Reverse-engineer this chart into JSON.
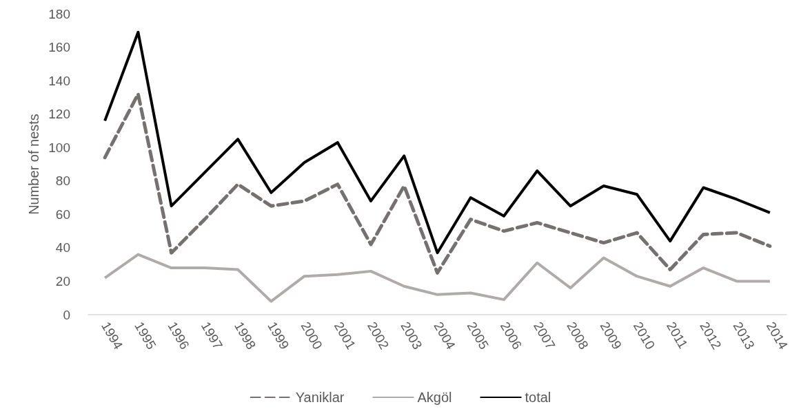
{
  "chart_data": {
    "type": "line",
    "ylabel": "Number of nests",
    "categories": [
      "1994",
      "1995",
      "1996",
      "1997",
      "1998",
      "1999",
      "2000",
      "2001",
      "2002",
      "2003",
      "2004",
      "2005",
      "2006",
      "2007",
      "2008",
      "2009",
      "2010",
      "2011",
      "2012",
      "2013",
      "2014"
    ],
    "series": [
      {
        "name": "Yaniklar",
        "color": "#767171",
        "line_style": "dashed",
        "values": [
          94,
          132,
          37,
          57,
          78,
          65,
          68,
          78,
          42,
          77,
          25,
          57,
          50,
          55,
          49,
          43,
          49,
          27,
          48,
          49,
          41
        ]
      },
      {
        "name": "Akgöl",
        "color": "#afabab",
        "line_style": "solid",
        "values": [
          22,
          36,
          28,
          28,
          27,
          8,
          23,
          24,
          26,
          17,
          12,
          13,
          9,
          31,
          16,
          34,
          23,
          17,
          28,
          20,
          20
        ]
      },
      {
        "name": "total",
        "color": "#000000",
        "line_style": "solid",
        "values": [
          116,
          169,
          65,
          85,
          105,
          73,
          91,
          103,
          68,
          95,
          37,
          70,
          59,
          86,
          65,
          77,
          72,
          44,
          76,
          69,
          61
        ]
      }
    ],
    "ylim": [
      0,
      180
    ],
    "yticks": [
      0,
      20,
      40,
      60,
      80,
      100,
      120,
      140,
      160,
      180
    ],
    "grid": false,
    "legend": "bottom",
    "marker": "none"
  }
}
